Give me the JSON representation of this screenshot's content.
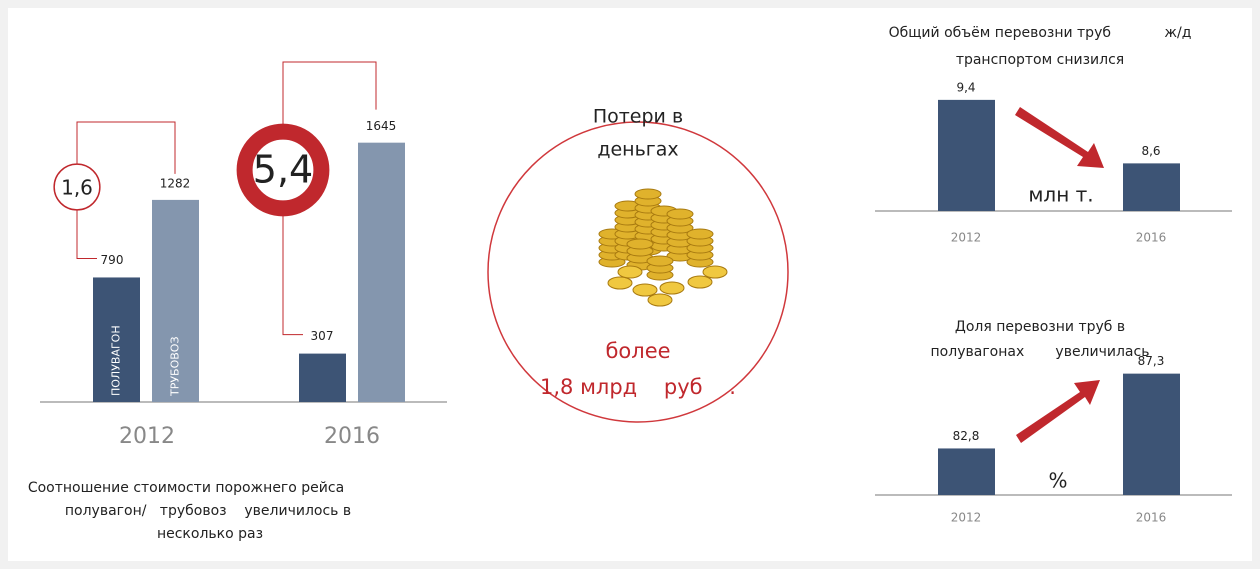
{
  "chart_data": [
    {
      "type": "bar",
      "categories": [
        "2012",
        "2016"
      ],
      "series": [
        {
          "name": "ПОЛУВАГОН",
          "color": "#3d5475",
          "values": [
            790,
            307
          ]
        },
        {
          "name": "ТРУБОВОЗ",
          "color": "#8496ae",
          "values": [
            1282,
            1645
          ]
        }
      ],
      "ylim": [
        0,
        1700
      ],
      "ratios": [
        1.6,
        5.4
      ],
      "ratio_labels": [
        "1,6",
        "5,4"
      ],
      "caption": [
        "Соотношение стоимости порожнего рейса",
        "полувагон/   трубовоз    увеличилось в",
        "несколько раз"
      ]
    },
    {
      "type": "bar",
      "title": [
        "Общий объём перевозни труб            ж/д",
        "транспортом снизился"
      ],
      "categories": [
        "2012",
        "2016"
      ],
      "values": [
        9.4,
        8.6
      ],
      "value_labels": [
        "9,4",
        "8,6"
      ],
      "ylim": [
        8,
        9.6
      ],
      "unit": "млн т.",
      "color": "#3d5475"
    },
    {
      "type": "bar",
      "title": [
        "Доля перевозни труб в",
        "полувагонах       увеличилась"
      ],
      "categories": [
        "2012",
        "2016"
      ],
      "values": [
        82.8,
        87.3
      ],
      "value_labels": [
        "82,8",
        "87,3"
      ],
      "ylim": [
        80,
        88
      ],
      "unit": "%",
      "color": "#3d5475"
    }
  ],
  "money": {
    "title": [
      "Потери в",
      "деньгах"
    ],
    "amount": [
      "более",
      "1,8 млрд    руб    ."
    ]
  }
}
